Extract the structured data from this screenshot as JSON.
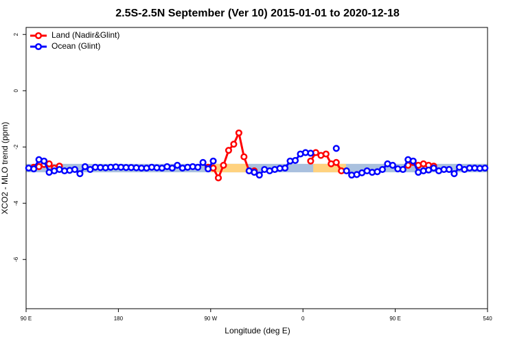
{
  "chart_data": {
    "type": "line",
    "title": "2.5S-2.5N September (Ver 10)   2015-01-01 to 2020-12-18",
    "xlabel": "Longitude (deg E)",
    "ylabel": "XCO2 - MLO trend (ppm)",
    "xlim": [
      90,
      540
    ],
    "xticks": [
      {
        "value": 90,
        "label": "90 E"
      },
      180,
      {
        "value": 270,
        "label": "90 W"
      },
      {
        "value": 360,
        "label": "0"
      },
      {
        "value": 450,
        "label": "90 E"
      },
      540
    ],
    "ylim": [
      -7.75,
      2.25
    ],
    "yticks": [
      -6,
      -4,
      -2,
      0,
      2
    ],
    "legend": "top-left",
    "surface_band": {
      "range": [
        -2.9,
        -2.6
      ],
      "ocean_color": "#a9c0de",
      "land_color": "#ffd27f",
      "land": [
        [
          270,
          306
        ],
        [
          370,
          402
        ]
      ]
    },
    "series": [
      {
        "name": "Land (Nadir&Glint)",
        "color": "#ff0000",
        "x": [
          97.5,
          102.5,
          107.5,
          112.5,
          117.5,
          122.5,
          127.5,
          267.5,
          272.5,
          277.5,
          282.5,
          287.5,
          292.5,
          297.5,
          302.5,
          307.5,
          312.5,
          317.5,
          367.5,
          372.5,
          377.5,
          382.5,
          387.5,
          392.5,
          397.5,
          402.5,
          462.5,
          467.5,
          472.5,
          477.5,
          482.5,
          487.5
        ],
        "values": [
          -2.72,
          -2.7,
          -2.62,
          -2.6,
          -2.75,
          -2.68,
          null,
          -2.72,
          -2.75,
          -3.1,
          -2.65,
          -2.12,
          -1.9,
          -1.5,
          -2.35,
          -2.85,
          -2.85,
          null,
          -2.5,
          -2.2,
          -2.3,
          -2.25,
          -2.6,
          -2.55,
          -2.85,
          null,
          -2.65,
          -2.55,
          -2.65,
          -2.6,
          -2.65,
          -2.68
        ]
      },
      {
        "name": "Ocean (Glint)",
        "color": "#0000ff",
        "x": [
          92.5,
          97.5,
          102.5,
          107.5,
          112.5,
          117.5,
          122.5,
          127.5,
          132.5,
          137.5,
          142.5,
          147.5,
          152.5,
          157.5,
          162.5,
          167.5,
          172.5,
          177.5,
          182.5,
          187.5,
          192.5,
          197.5,
          202.5,
          207.5,
          212.5,
          217.5,
          222.5,
          227.5,
          232.5,
          237.5,
          242.5,
          247.5,
          252.5,
          257.5,
          262.5,
          267.5,
          272.5,
          277.5,
          307.5,
          312.5,
          317.5,
          322.5,
          327.5,
          332.5,
          337.5,
          342.5,
          347.5,
          352.5,
          357.5,
          362.5,
          367.5,
          372.5,
          392.5,
          397.5,
          402.5,
          407.5,
          412.5,
          417.5,
          422.5,
          427.5,
          432.5,
          437.5,
          442.5,
          447.5,
          452.5,
          457.5,
          462.5,
          467.5,
          472.5,
          477.5,
          482.5,
          487.5,
          492.5,
          497.5,
          502.5,
          507.5,
          512.5,
          517.5,
          522.5,
          527.5,
          532.5,
          537.5
        ],
        "values": [
          -2.75,
          -2.78,
          -2.45,
          -2.5,
          -2.9,
          -2.85,
          -2.8,
          -2.85,
          -2.83,
          -2.8,
          -2.95,
          -2.7,
          -2.8,
          -2.72,
          -2.73,
          -2.74,
          -2.72,
          -2.71,
          -2.72,
          -2.73,
          -2.73,
          -2.74,
          -2.75,
          -2.75,
          -2.72,
          -2.74,
          -2.75,
          -2.7,
          -2.75,
          -2.65,
          -2.75,
          -2.72,
          -2.7,
          -2.72,
          -2.55,
          -2.78,
          -2.5,
          null,
          -2.85,
          -2.9,
          -3.0,
          -2.8,
          -2.85,
          -2.8,
          -2.76,
          -2.75,
          -2.5,
          -2.48,
          -2.25,
          -2.2,
          -2.22,
          null,
          -2.05,
          null,
          -2.85,
          -3.0,
          -2.98,
          -2.92,
          -2.85,
          -2.9,
          -2.88,
          -2.8,
          -2.6,
          -2.65,
          -2.78,
          -2.8,
          -2.45,
          -2.5,
          -2.9,
          -2.85,
          -2.82,
          -2.75,
          -2.85,
          -2.8,
          -2.8,
          -2.95,
          -2.72,
          -2.8,
          -2.75,
          -2.75,
          -2.76,
          -2.75
        ]
      }
    ]
  }
}
